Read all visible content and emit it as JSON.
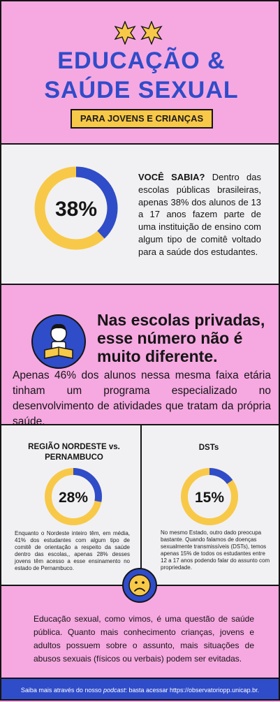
{
  "header": {
    "title_line1": "EDUCAÇÃO &",
    "title_line2": "SAÚDE SEXUAL",
    "subtitle": "PARA JOVENS E CRIANÇAS",
    "star_icon": "star-icon"
  },
  "colors": {
    "pink": "#f6a8e1",
    "blue": "#2f4cc9",
    "yellow": "#f8c948",
    "light": "#f1f1f3",
    "dark": "#151515"
  },
  "stat_main": {
    "value_label": "38%",
    "percent": 38,
    "lead": "VOCÊ SABIA?",
    "text": "Dentro das escolas públicas brasileiras, apenas 38% dos alunos de 13 a 17 anos fazem parte de uma instituição de ensino com algum tipo de comitê voltado para a saúde dos estudantes."
  },
  "private_schools": {
    "heading": "Nas escolas privadas, esse número não é muito diferente.",
    "text": "Apenas 46% dos alunos nessa mesma faixa etária tinham um programa especializado no desenvolvimento de atividades que tratam da própria saúde.",
    "icon": "child-reading-icon"
  },
  "region": {
    "title": "REGIÃO NORDESTE vs. PERNAMBUCO",
    "value_label": "28%",
    "percent": 28,
    "text": "Enquanto o Nordeste inteiro têm, em média, 41% dos estudantes com algum tipo de comitê de orientação a respeito da saúde dentro das escolas,, apenas 28% desses jovens têm acesso a esse ensinamento no estado de Pernambuco."
  },
  "dst": {
    "title": "DSTs",
    "value_label": "15%",
    "percent": 15,
    "text": "No mesmo Estado, outro dado preocupa bastante. Quando falamos de doenças sexualmente transmissíveis (DSTs), temos apenas 15% de todos os estudantes entre 12 a 17 anos podendo falar do assunto com propriedade."
  },
  "closing": {
    "icon": "sad-face-icon",
    "text": "Educação sexual, como vimos, é uma questão de saúde pública. Quanto mais conhecimento crianças, jovens e adultos possuem sobre o assunto, mais situações de abusos sexuais (físicos ou verbais) podem ser evitadas."
  },
  "footer": {
    "prefix": "Saiba mais através do nosso ",
    "podcast": "podcast",
    "suffix": ": basta acessar https://observatoriopp.unicap.br."
  }
}
